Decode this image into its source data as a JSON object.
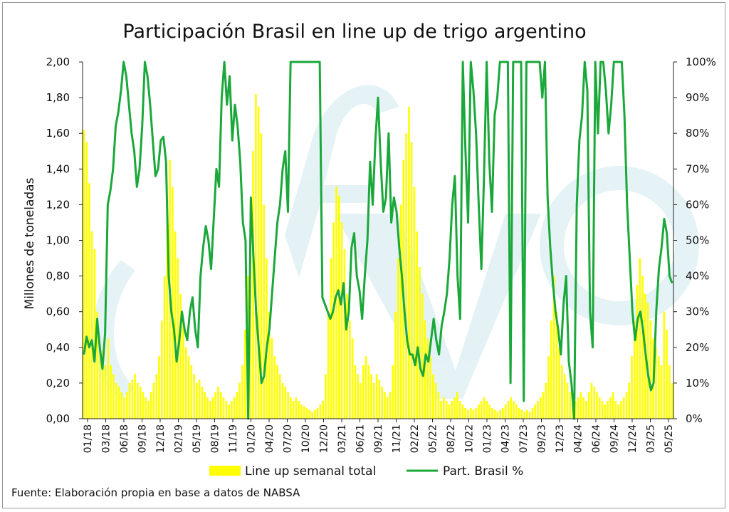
{
  "chart_data": {
    "type": "bar+line",
    "title": "Participación Brasil en line up de trigo argentino",
    "ylabel": "Millones de toneladas",
    "y_left_lim": [
      0,
      2.0
    ],
    "y_left_ticks": [
      "0,00",
      "0,20",
      "0,40",
      "0,60",
      "0,80",
      "1,00",
      "1,20",
      "1,40",
      "1,60",
      "1,80",
      "2,00"
    ],
    "y_right_lim": [
      0,
      100
    ],
    "y_right_ticks": [
      "0%",
      "10%",
      "20%",
      "30%",
      "40%",
      "50%",
      "60%",
      "70%",
      "80%",
      "90%",
      "100%"
    ],
    "x_tick_labels": [
      "01/18",
      "03/18",
      "06/18",
      "09/18",
      "12/18",
      "02/19",
      "05/19",
      "08/19",
      "11/19",
      "01/20",
      "04/20",
      "07/20",
      "10/20",
      "12/20",
      "03/21",
      "06/21",
      "09/21",
      "11/21",
      "02/22",
      "05/22",
      "08/22",
      "10/22",
      "01/23",
      "04/23",
      "07/23",
      "09/23",
      "12/23",
      "04/24",
      "06/24",
      "09/24",
      "12/24",
      "03/25",
      "05/25"
    ],
    "series": [
      {
        "name": "Line up semanal total",
        "type": "bar",
        "axis": "left",
        "color": "#ffff00",
        "values": [
          1.62,
          1.55,
          1.32,
          1.05,
          0.95,
          0.6,
          0.4,
          0.38,
          0.3,
          0.45,
          0.3,
          0.25,
          0.2,
          0.18,
          0.15,
          0.12,
          0.15,
          0.2,
          0.22,
          0.25,
          0.2,
          0.18,
          0.15,
          0.12,
          0.1,
          0.15,
          0.2,
          0.25,
          0.35,
          0.55,
          0.8,
          1.1,
          1.45,
          1.3,
          1.05,
          0.9,
          0.7,
          0.55,
          0.4,
          0.35,
          0.3,
          0.25,
          0.2,
          0.22,
          0.18,
          0.15,
          0.12,
          0.1,
          0.12,
          0.15,
          0.18,
          0.15,
          0.12,
          0.1,
          0.08,
          0.1,
          0.12,
          0.15,
          0.2,
          0.3,
          0.5,
          0.8,
          1.1,
          1.5,
          1.82,
          1.75,
          1.6,
          1.2,
          0.9,
          0.6,
          0.45,
          0.35,
          0.3,
          0.25,
          0.2,
          0.18,
          0.15,
          0.12,
          0.1,
          0.12,
          0.1,
          0.08,
          0.07,
          0.06,
          0.05,
          0.04,
          0.05,
          0.06,
          0.08,
          0.1,
          0.25,
          0.6,
          0.9,
          1.1,
          1.3,
          1.25,
          1.1,
          0.95,
          0.7,
          0.55,
          0.45,
          0.3,
          0.25,
          0.2,
          0.3,
          0.35,
          0.3,
          0.25,
          0.2,
          0.25,
          0.22,
          0.18,
          0.15,
          0.12,
          0.15,
          0.3,
          0.6,
          0.9,
          1.2,
          1.45,
          1.6,
          1.75,
          1.55,
          1.3,
          1.05,
          0.85,
          0.7,
          0.55,
          0.45,
          0.35,
          0.25,
          0.2,
          0.15,
          0.1,
          0.12,
          0.1,
          0.08,
          0.1,
          0.12,
          0.15,
          0.1,
          0.08,
          0.06,
          0.05,
          0.06,
          0.05,
          0.06,
          0.08,
          0.1,
          0.12,
          0.1,
          0.08,
          0.06,
          0.05,
          0.04,
          0.05,
          0.06,
          0.08,
          0.1,
          0.12,
          0.1,
          0.08,
          0.06,
          0.05,
          0.04,
          0.05,
          0.04,
          0.06,
          0.08,
          0.1,
          0.12,
          0.15,
          0.2,
          0.35,
          0.55,
          0.8,
          0.6,
          0.4,
          0.3,
          0.25,
          0.2,
          0.15,
          0.12,
          0.1,
          0.12,
          0.15,
          0.12,
          0.1,
          0.15,
          0.2,
          0.18,
          0.15,
          0.12,
          0.1,
          0.08,
          0.1,
          0.12,
          0.15,
          0.1,
          0.08,
          0.1,
          0.12,
          0.15,
          0.2,
          0.35,
          0.55,
          0.75,
          0.9,
          0.8,
          0.7,
          0.65,
          0.55,
          0.45,
          0.4,
          0.35,
          0.3,
          0.6,
          0.5,
          0.3,
          0.2
        ]
      },
      {
        "name": "Part. Brasil %",
        "type": "line",
        "axis": "right",
        "color": "#1aa83a",
        "values": [
          18,
          23,
          20,
          22,
          16,
          28,
          20,
          14,
          24,
          60,
          64,
          70,
          82,
          86,
          92,
          100,
          96,
          88,
          80,
          75,
          65,
          70,
          82,
          100,
          96,
          88,
          78,
          68,
          70,
          78,
          79,
          72,
          40,
          30,
          25,
          16,
          22,
          30,
          25,
          22,
          30,
          34,
          25,
          20,
          40,
          48,
          54,
          50,
          42,
          56,
          70,
          65,
          90,
          100,
          88,
          96,
          78,
          88,
          82,
          72,
          55,
          50,
          0,
          62,
          45,
          30,
          20,
          10,
          12,
          20,
          25,
          35,
          45,
          55,
          60,
          70,
          75,
          58,
          100,
          100,
          100,
          100,
          100,
          100,
          100,
          100,
          100,
          100,
          100,
          100,
          34,
          32,
          30,
          28,
          30,
          34,
          36,
          32,
          38,
          25,
          30,
          48,
          52,
          40,
          36,
          28,
          40,
          50,
          72,
          60,
          78,
          90,
          72,
          58,
          62,
          80,
          55,
          62,
          58,
          48,
          40,
          30,
          22,
          18,
          18,
          15,
          20,
          14,
          12,
          18,
          16,
          22,
          28,
          22,
          18,
          26,
          30,
          35,
          45,
          60,
          68,
          40,
          28,
          100,
          75,
          55,
          100,
          92,
          80,
          60,
          42,
          68,
          100,
          72,
          58,
          85,
          90,
          100,
          100,
          100,
          100,
          10,
          100,
          100,
          100,
          100,
          5,
          100,
          100,
          100,
          100,
          100,
          100,
          90,
          100,
          62,
          48,
          38,
          30,
          25,
          18,
          32,
          40,
          16,
          10,
          0,
          60,
          78,
          85,
          100,
          92,
          30,
          20,
          100,
          80,
          100,
          100,
          92,
          80,
          88,
          100,
          100,
          100,
          100,
          85,
          60,
          45,
          30,
          22,
          28,
          30,
          25,
          18,
          12,
          8,
          10,
          30,
          42,
          48,
          56,
          52,
          40,
          38
        ]
      }
    ]
  },
  "legend": {
    "bar_label": "Line up semanal total",
    "line_label": "Part. Brasil %"
  },
  "footer": {
    "source": "Fuente: Elaboración propia en base a datos de NABSA"
  },
  "colors": {
    "bar": "#ffff00",
    "line": "#1aa83a",
    "watermark": "#dcf0f3"
  }
}
